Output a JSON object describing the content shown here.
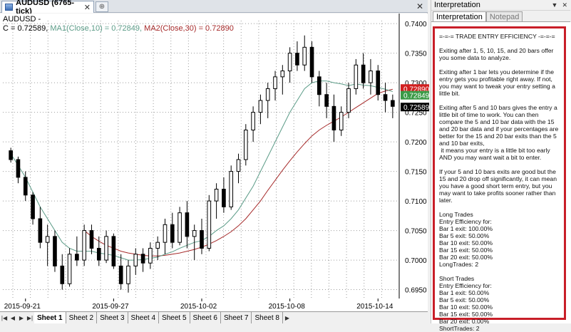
{
  "chart_window": {
    "tab_title": "AUDUSD (6765-tick)",
    "tab_close": "✕",
    "new_tab": "⊕",
    "window_close": "✕",
    "symbol_label": "AUDUSD -",
    "ohlc_prefix": "C = 0.72589,",
    "ma1_label": "MA1(Close,10) = 0.72849,",
    "ma2_label": "MA2(Close,30) = 0.72890",
    "colors": {
      "candle": "#000000",
      "ma1": "#5c9c88",
      "ma2": "#a62a2a",
      "grid": "#9c9c9c",
      "price_tag_ma2": "#d11f1f",
      "price_tag_ma1": "#3a9a46",
      "price_tag_last": "#000000"
    },
    "price_tags": [
      {
        "value": "0.72890",
        "color": "#d11f1f"
      },
      {
        "value": "0.72849",
        "color": "#3a9a46"
      },
      {
        "value": "0.72589",
        "color": "#000000"
      }
    ]
  },
  "chart_data": {
    "type": "candlestick",
    "title": "",
    "ylim": [
      0.6935,
      0.7405
    ],
    "y_ticks": [
      "0.7400",
      "0.7350",
      "0.7300",
      "0.7250",
      "0.7200",
      "0.7150",
      "0.7100",
      "0.7050",
      "0.7000",
      "0.6950"
    ],
    "x_ticks": [
      "2015-09-21",
      "2015-09-27",
      "2015-10-02",
      "2015-10-08",
      "2015-10-14"
    ],
    "bars": [
      [
        0.7185,
        0.719,
        0.7165,
        0.717
      ],
      [
        0.717,
        0.7175,
        0.713,
        0.714
      ],
      [
        0.714,
        0.715,
        0.71,
        0.711
      ],
      [
        0.711,
        0.7115,
        0.706,
        0.707
      ],
      [
        0.707,
        0.709,
        0.702,
        0.703
      ],
      [
        0.703,
        0.706,
        0.699,
        0.704
      ],
      [
        0.704,
        0.705,
        0.698,
        0.699
      ],
      [
        0.699,
        0.701,
        0.695,
        0.696
      ],
      [
        0.696,
        0.702,
        0.6955,
        0.701
      ],
      [
        0.701,
        0.704,
        0.699,
        0.7
      ],
      [
        0.7,
        0.706,
        0.699,
        0.705
      ],
      [
        0.705,
        0.706,
        0.701,
        0.702
      ],
      [
        0.702,
        0.704,
        0.699,
        0.7
      ],
      [
        0.7,
        0.705,
        0.6995,
        0.704
      ],
      [
        0.704,
        0.7045,
        0.6985,
        0.699
      ],
      [
        0.699,
        0.701,
        0.695,
        0.696
      ],
      [
        0.696,
        0.7,
        0.6945,
        0.699
      ],
      [
        0.699,
        0.702,
        0.6975,
        0.701
      ],
      [
        0.701,
        0.702,
        0.698,
        0.6995
      ],
      [
        0.6995,
        0.703,
        0.6985,
        0.702
      ],
      [
        0.702,
        0.704,
        0.7,
        0.703
      ],
      [
        0.703,
        0.707,
        0.701,
        0.706
      ],
      [
        0.706,
        0.708,
        0.702,
        0.703
      ],
      [
        0.703,
        0.709,
        0.7025,
        0.708
      ],
      [
        0.708,
        0.71,
        0.702,
        0.704
      ],
      [
        0.704,
        0.706,
        0.7,
        0.705
      ],
      [
        0.705,
        0.707,
        0.701,
        0.702
      ],
      [
        0.702,
        0.711,
        0.7015,
        0.71
      ],
      [
        0.71,
        0.713,
        0.707,
        0.712
      ],
      [
        0.712,
        0.714,
        0.708,
        0.709
      ],
      [
        0.709,
        0.716,
        0.7085,
        0.715
      ],
      [
        0.715,
        0.718,
        0.713,
        0.717
      ],
      [
        0.717,
        0.723,
        0.716,
        0.722
      ],
      [
        0.722,
        0.726,
        0.72,
        0.725
      ],
      [
        0.725,
        0.728,
        0.723,
        0.727
      ],
      [
        0.727,
        0.73,
        0.724,
        0.729
      ],
      [
        0.729,
        0.732,
        0.727,
        0.731
      ],
      [
        0.731,
        0.733,
        0.728,
        0.732
      ],
      [
        0.732,
        0.736,
        0.73,
        0.735
      ],
      [
        0.735,
        0.737,
        0.732,
        0.733
      ],
      [
        0.733,
        0.738,
        0.732,
        0.736
      ],
      [
        0.736,
        0.737,
        0.73,
        0.731
      ],
      [
        0.731,
        0.732,
        0.726,
        0.728
      ],
      [
        0.728,
        0.73,
        0.724,
        0.726
      ],
      [
        0.726,
        0.728,
        0.72,
        0.722
      ],
      [
        0.722,
        0.726,
        0.721,
        0.725
      ],
      [
        0.725,
        0.73,
        0.724,
        0.729
      ],
      [
        0.729,
        0.734,
        0.728,
        0.733
      ],
      [
        0.733,
        0.735,
        0.729,
        0.73
      ],
      [
        0.73,
        0.734,
        0.728,
        0.732
      ],
      [
        0.732,
        0.733,
        0.727,
        0.728
      ],
      [
        0.728,
        0.73,
        0.725,
        0.727
      ],
      [
        0.727,
        0.728,
        0.724,
        0.726
      ]
    ],
    "ma1": [
      0.718,
      0.716,
      0.714,
      0.7115,
      0.709,
      0.707,
      0.705,
      0.703,
      0.702,
      0.7015,
      0.7015,
      0.7015,
      0.7012,
      0.701,
      0.7008,
      0.7004,
      0.7,
      0.7,
      0.7001,
      0.7003,
      0.7005,
      0.701,
      0.7014,
      0.702,
      0.7025,
      0.703,
      0.7033,
      0.704,
      0.705,
      0.7058,
      0.707,
      0.7085,
      0.7105,
      0.7125,
      0.715,
      0.7175,
      0.72,
      0.7225,
      0.725,
      0.727,
      0.729,
      0.73,
      0.7303,
      0.7303,
      0.73,
      0.7298,
      0.7295,
      0.7298,
      0.7296,
      0.7295,
      0.7292,
      0.7289,
      0.7285
    ],
    "ma2": [
      null,
      null,
      null,
      null,
      null,
      null,
      null,
      null,
      null,
      null,
      0.705,
      0.704,
      0.7032,
      0.7025,
      0.702,
      0.7015,
      0.7012,
      0.701,
      0.7008,
      0.7007,
      0.7007,
      0.7008,
      0.701,
      0.7012,
      0.7015,
      0.7018,
      0.7022,
      0.7027,
      0.7033,
      0.704,
      0.7048,
      0.7058,
      0.707,
      0.7085,
      0.71,
      0.7118,
      0.7135,
      0.7152,
      0.7168,
      0.7183,
      0.7197,
      0.721,
      0.722,
      0.7228,
      0.7235,
      0.7242,
      0.725,
      0.7258,
      0.7266,
      0.7274,
      0.7282,
      0.7286,
      0.7289
    ]
  },
  "sheet_bar": {
    "nav": [
      "|◀",
      "◀",
      "▶",
      "▶|"
    ],
    "tabs": [
      "Sheet 1",
      "Sheet 2",
      "Sheet 3",
      "Sheet 4",
      "Sheet 5",
      "Sheet 6",
      "Sheet 7",
      "Sheet 8"
    ],
    "scroll_right": "▶"
  },
  "interpretation": {
    "title": "Interpretation",
    "controls": [
      "▼",
      "✕"
    ],
    "tabs": [
      "Interpretation",
      "Notepad"
    ],
    "text": "=-=-= TRADE ENTRY EFFICIENCY -=-=-=\n\nExiting after 1, 5, 10, 15, and 20 bars offer you some data to analyze.\n\nExiting after 1 bar lets you determine if the entry gets you profitable right away. If not, you may want to tweak your entry setting a little bit.\n\nExiting after 5 and 10 bars gives the entry a little bit of time to work. You can then compare the 5 and 10 bar data with the 15 and 20 bar data and if your percentages are better for the 15 and 20 bar exits than the 5 and 10 bar exits,\n it means your entry is a little bit too early AND you may want wait a bit to enter.\n\nIf your 5 and 10 bars exits are good but the 15 and 20 drop off significantly, it can mean you have a good short term entry, but you may want to take profits sooner rather than later.\n\nLong Trades\nEntry Efficiency for:\nBar 1 exit: 100.00%\nBar 5 exit: 50.00%\nBar 10 exit: 50.00%\nBar 15 exit: 50.00%\nBar 20 exit: 50.00%\nLongTrades: 2\n\nShort Trades\nEntry Efficiency for:\nBar 1 exit: 50.00%\nBar 5 exit: 50.00%\nBar 10 exit: 50.00%\nBar 15 exit: 50.00%\nBar 20 exit: 0.00%\nShortTrades: 2"
  }
}
